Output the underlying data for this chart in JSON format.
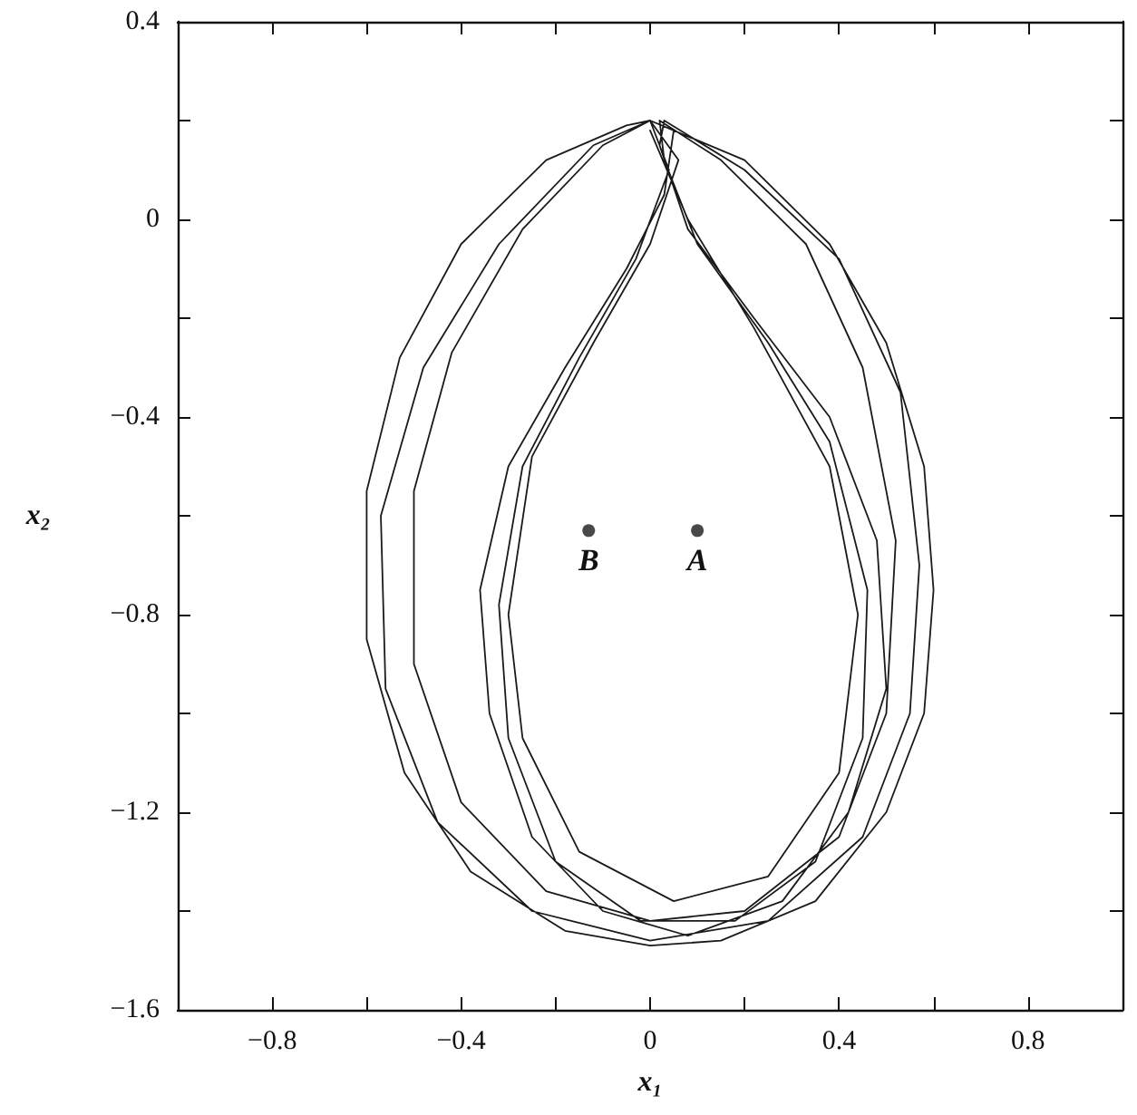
{
  "chart_data": {
    "type": "line",
    "xlabel": "x₁",
    "ylabel": "x₂",
    "xlim": [
      -1,
      1
    ],
    "ylim": [
      -1.6,
      0.4
    ],
    "xticks": [
      {
        "value": -0.8,
        "label": "−0.8"
      },
      {
        "value": -0.6,
        "label": null
      },
      {
        "value": -0.4,
        "label": "−0.4"
      },
      {
        "value": -0.2,
        "label": null
      },
      0,
      {
        "value": 0.2,
        "label": null
      },
      0.4,
      {
        "value": 0.6,
        "label": null
      },
      0.8
    ],
    "yticks": [
      0.4,
      {
        "value": 0.2,
        "label": null
      },
      0,
      {
        "value": -0.2,
        "label": null
      },
      {
        "value": -0.4,
        "label": "−0.4"
      },
      {
        "value": -0.6,
        "label": null
      },
      {
        "value": -0.8,
        "label": "−0.8"
      },
      {
        "value": -1,
        "label": null
      },
      {
        "value": -1.2,
        "label": "−1.2"
      },
      {
        "value": -1.4,
        "label": null
      },
      {
        "value": -1.6,
        "label": "−1.6"
      }
    ],
    "grid": false,
    "marker": "none",
    "line_style": "solid",
    "series": [
      {
        "color": "#1a1a1a",
        "x": [
          0,
          0.2,
          0.38,
          0.5,
          0.58,
          0.6,
          0.58,
          0.5,
          0.35,
          0.15,
          0,
          -0.18,
          -0.38,
          -0.52,
          -0.6,
          -0.6,
          -0.53,
          -0.4,
          -0.22,
          -0.05,
          0,
          0.05,
          0.03,
          -0.05,
          -0.18,
          -0.3,
          -0.36,
          -0.34,
          -0.25,
          -0.1,
          0.08,
          0.28,
          0.42,
          0.5,
          0.48,
          0.38,
          0.22,
          0.08,
          0.02,
          0.03,
          0.2,
          0.4,
          0.53,
          0.57,
          0.55,
          0.45,
          0.25,
          0,
          -0.25,
          -0.45,
          -0.56,
          -0.57,
          -0.48,
          -0.32,
          -0.12,
          0,
          0.04,
          -0.03,
          -0.15,
          -0.27,
          -0.32,
          -0.3,
          -0.2,
          -0.02,
          0.18,
          0.35,
          0.45,
          0.46,
          0.38,
          0.25,
          0.1,
          0.03,
          0.02,
          0.15,
          0.33,
          0.45,
          0.52,
          0.5,
          0.4,
          0.2,
          0,
          -0.22,
          -0.4,
          -0.5,
          -0.5,
          -0.42,
          -0.27,
          -0.1,
          0,
          0.06,
          0,
          -0.12,
          -0.25,
          -0.3,
          -0.27,
          -0.15,
          0.05,
          0.25,
          0.4,
          0.44,
          0.38,
          0.22,
          0.08,
          0
        ],
        "values": [
          0.2,
          0.12,
          -0.05,
          -0.25,
          -0.5,
          -0.75,
          -1,
          -1.2,
          -1.38,
          -1.46,
          -1.47,
          -1.44,
          -1.32,
          -1.12,
          -0.85,
          -0.55,
          -0.28,
          -0.05,
          0.12,
          0.19,
          0.2,
          0.18,
          0.05,
          -0.1,
          -0.3,
          -0.5,
          -0.75,
          -1,
          -1.25,
          -1.4,
          -1.45,
          -1.38,
          -1.2,
          -0.95,
          -0.65,
          -0.4,
          -0.2,
          -0.02,
          0.15,
          0.2,
          0.1,
          -0.08,
          -0.35,
          -0.7,
          -1,
          -1.25,
          -1.42,
          -1.46,
          -1.4,
          -1.22,
          -0.95,
          -0.6,
          -0.3,
          -0.05,
          0.15,
          0.2,
          0.1,
          -0.08,
          -0.28,
          -0.5,
          -0.78,
          -1.05,
          -1.3,
          -1.42,
          -1.42,
          -1.3,
          -1.05,
          -0.75,
          -0.45,
          -0.25,
          -0.05,
          0.12,
          0.2,
          0.12,
          -0.05,
          -0.3,
          -0.65,
          -1,
          -1.25,
          -1.4,
          -1.42,
          -1.36,
          -1.18,
          -0.9,
          -0.55,
          -0.27,
          -0.02,
          0.15,
          0.2,
          0.12,
          -0.05,
          -0.25,
          -0.48,
          -0.8,
          -1.05,
          -1.28,
          -1.38,
          -1.33,
          -1.12,
          -0.8,
          -0.5,
          -0.22,
          0,
          0.18
        ]
      },
      {
        "type": "scatter",
        "marker": "circle",
        "color": "#1a1a1a",
        "x": [
          -0.13,
          0.1
        ],
        "values": [
          -0.63,
          -0.63
        ]
      }
    ],
    "annotations": [
      {
        "text": "B",
        "x": -0.13,
        "y": -0.63
      },
      {
        "text": "A",
        "x": 0.1,
        "y": -0.63
      }
    ]
  }
}
